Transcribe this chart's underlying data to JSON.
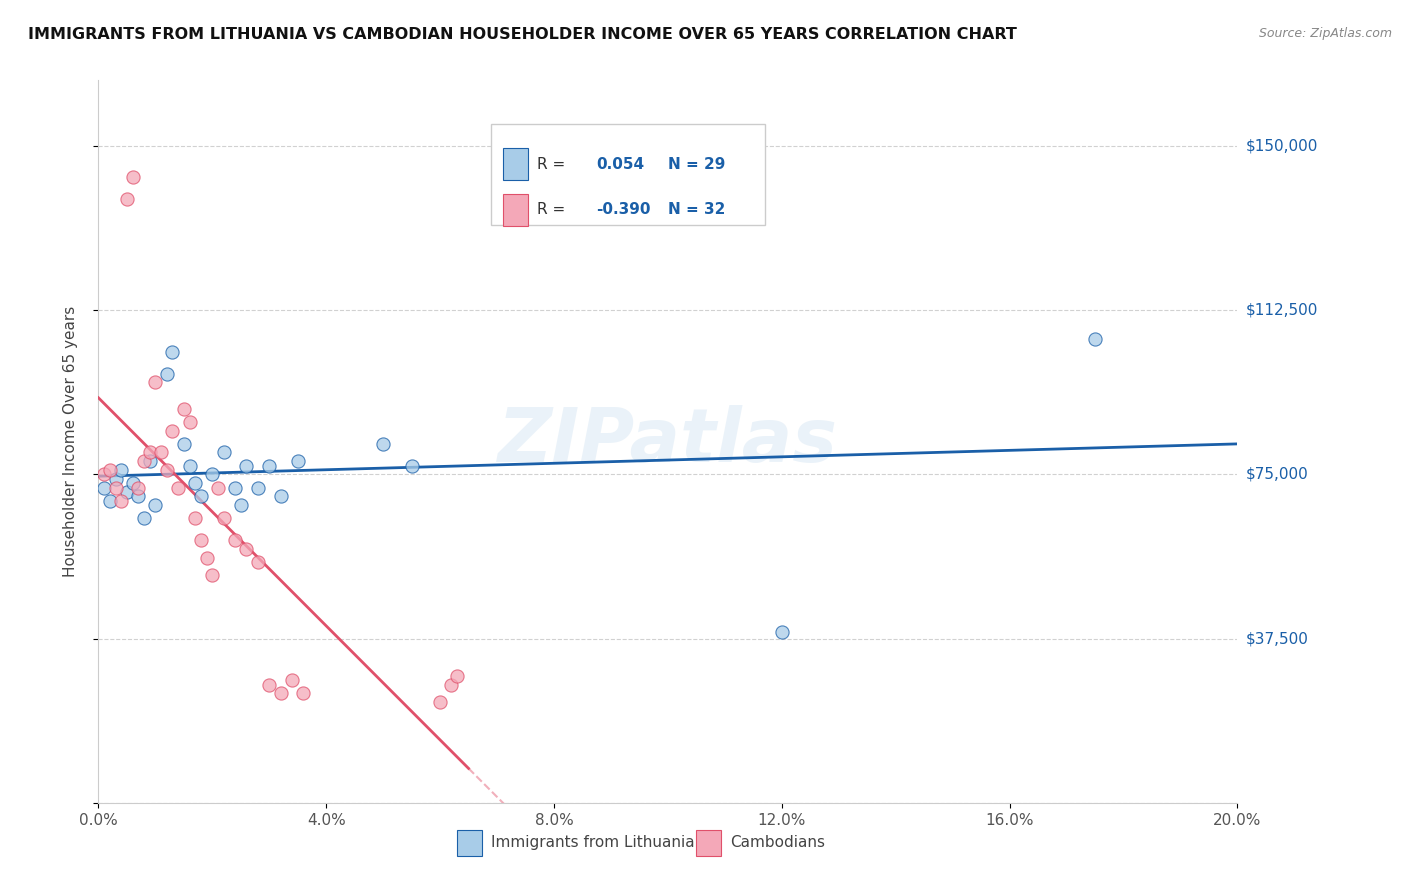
{
  "title": "IMMIGRANTS FROM LITHUANIA VS CAMBODIAN HOUSEHOLDER INCOME OVER 65 YEARS CORRELATION CHART",
  "source": "Source: ZipAtlas.com",
  "ylabel": "Householder Income Over 65 years",
  "watermark": "ZIPatlas",
  "legend_label1": "Immigrants from Lithuania",
  "legend_label2": "Cambodians",
  "r1": "0.054",
  "n1": "29",
  "r2": "-0.390",
  "n2": "32",
  "blue_color": "#a8cce8",
  "pink_color": "#f4a8b8",
  "blue_line_color": "#1a5fa8",
  "pink_line_color": "#e0506a",
  "blue_x": [
    0.001,
    0.002,
    0.003,
    0.004,
    0.005,
    0.006,
    0.007,
    0.008,
    0.009,
    0.01,
    0.012,
    0.013,
    0.015,
    0.016,
    0.017,
    0.018,
    0.02,
    0.022,
    0.024,
    0.025,
    0.026,
    0.028,
    0.03,
    0.032,
    0.035,
    0.05,
    0.055,
    0.12,
    0.175
  ],
  "blue_y": [
    72000,
    69000,
    74000,
    76000,
    71000,
    73000,
    70000,
    65000,
    78000,
    68000,
    98000,
    103000,
    82000,
    77000,
    73000,
    70000,
    75000,
    80000,
    72000,
    68000,
    77000,
    72000,
    77000,
    70000,
    78000,
    82000,
    77000,
    39000,
    106000
  ],
  "pink_x": [
    0.001,
    0.002,
    0.003,
    0.004,
    0.005,
    0.006,
    0.007,
    0.008,
    0.009,
    0.01,
    0.011,
    0.012,
    0.013,
    0.014,
    0.015,
    0.016,
    0.017,
    0.018,
    0.019,
    0.02,
    0.021,
    0.022,
    0.024,
    0.026,
    0.028,
    0.03,
    0.032,
    0.034,
    0.036,
    0.06,
    0.062,
    0.063
  ],
  "pink_y": [
    75000,
    76000,
    72000,
    69000,
    138000,
    143000,
    72000,
    78000,
    80000,
    96000,
    80000,
    76000,
    85000,
    72000,
    90000,
    87000,
    65000,
    60000,
    56000,
    52000,
    72000,
    65000,
    60000,
    58000,
    55000,
    27000,
    25000,
    28000,
    25000,
    23000,
    27000,
    29000
  ],
  "xlim": [
    0.0,
    0.2
  ],
  "ylim": [
    0,
    165000
  ],
  "yticks": [
    0,
    37500,
    75000,
    112500,
    150000
  ],
  "ytick_labels": [
    "",
    "$37,500",
    "$75,000",
    "$112,500",
    "$150,000"
  ],
  "xticks": [
    0.0,
    0.04,
    0.08,
    0.12,
    0.16,
    0.2
  ],
  "xtick_labels": [
    "0.0%",
    "4.0%",
    "8.0%",
    "12.0%",
    "16.0%",
    "20.0%"
  ]
}
